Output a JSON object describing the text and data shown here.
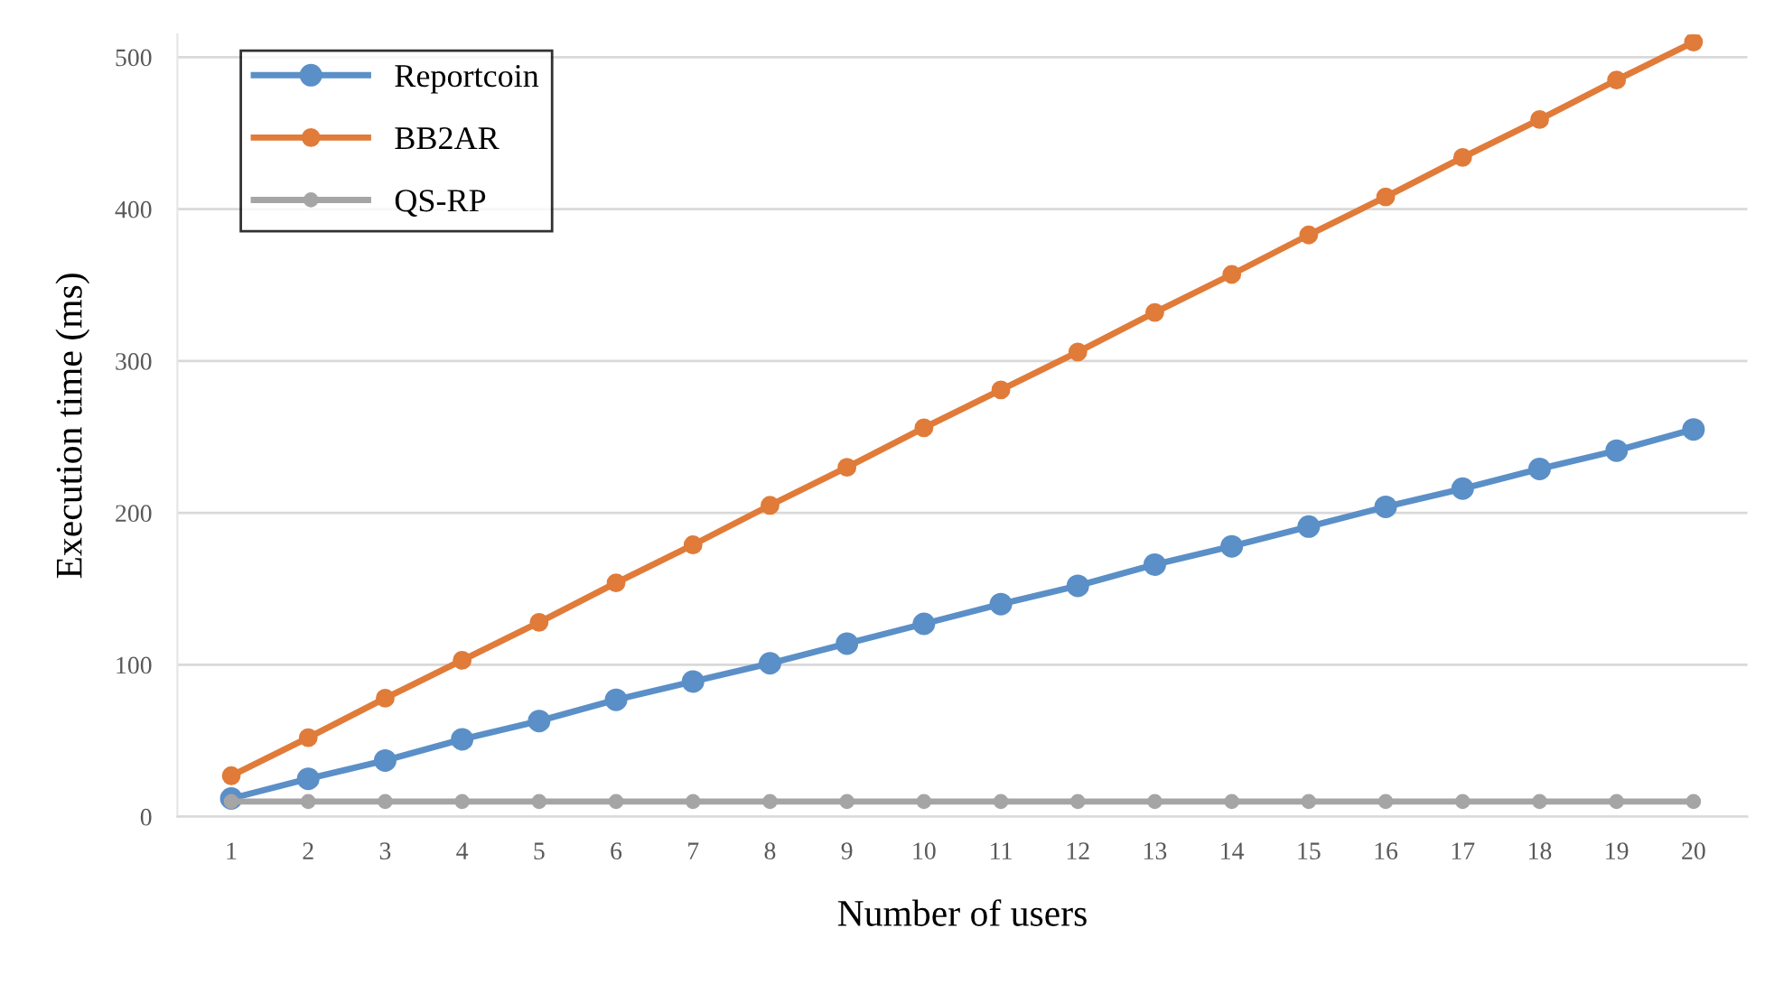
{
  "chart_data": {
    "type": "line",
    "xlabel": "Number of users",
    "ylabel": "Execution time (ms)",
    "categories": [
      "1",
      "2",
      "3",
      "4",
      "5",
      "6",
      "7",
      "8",
      "9",
      "10",
      "11",
      "12",
      "13",
      "14",
      "15",
      "16",
      "17",
      "18",
      "19",
      "20"
    ],
    "series": [
      {
        "name": "Reportcoin",
        "color": "#5b8fc7",
        "values": [
          12,
          25,
          37,
          51,
          63,
          77,
          89,
          101,
          114,
          127,
          140,
          152,
          166,
          178,
          191,
          204,
          216,
          229,
          241,
          255
        ]
      },
      {
        "name": "BB2AR",
        "color": "#e07b39",
        "values": [
          27,
          52,
          78,
          103,
          128,
          154,
          179,
          205,
          230,
          256,
          281,
          306,
          332,
          357,
          383,
          408,
          434,
          459,
          485,
          510
        ]
      },
      {
        "name": "QS-RP",
        "color": "#a5a5a5",
        "values": [
          10,
          10,
          10,
          10,
          10,
          10,
          10,
          10,
          10,
          10,
          10,
          10,
          10,
          10,
          10,
          10,
          10,
          10,
          10,
          10
        ]
      }
    ],
    "ylim": [
      0,
      515
    ],
    "yticks": [
      0,
      100,
      200,
      300,
      400,
      500
    ],
    "grid": "y",
    "legend": "top left",
    "marker": "circle",
    "line_style": "solid"
  }
}
